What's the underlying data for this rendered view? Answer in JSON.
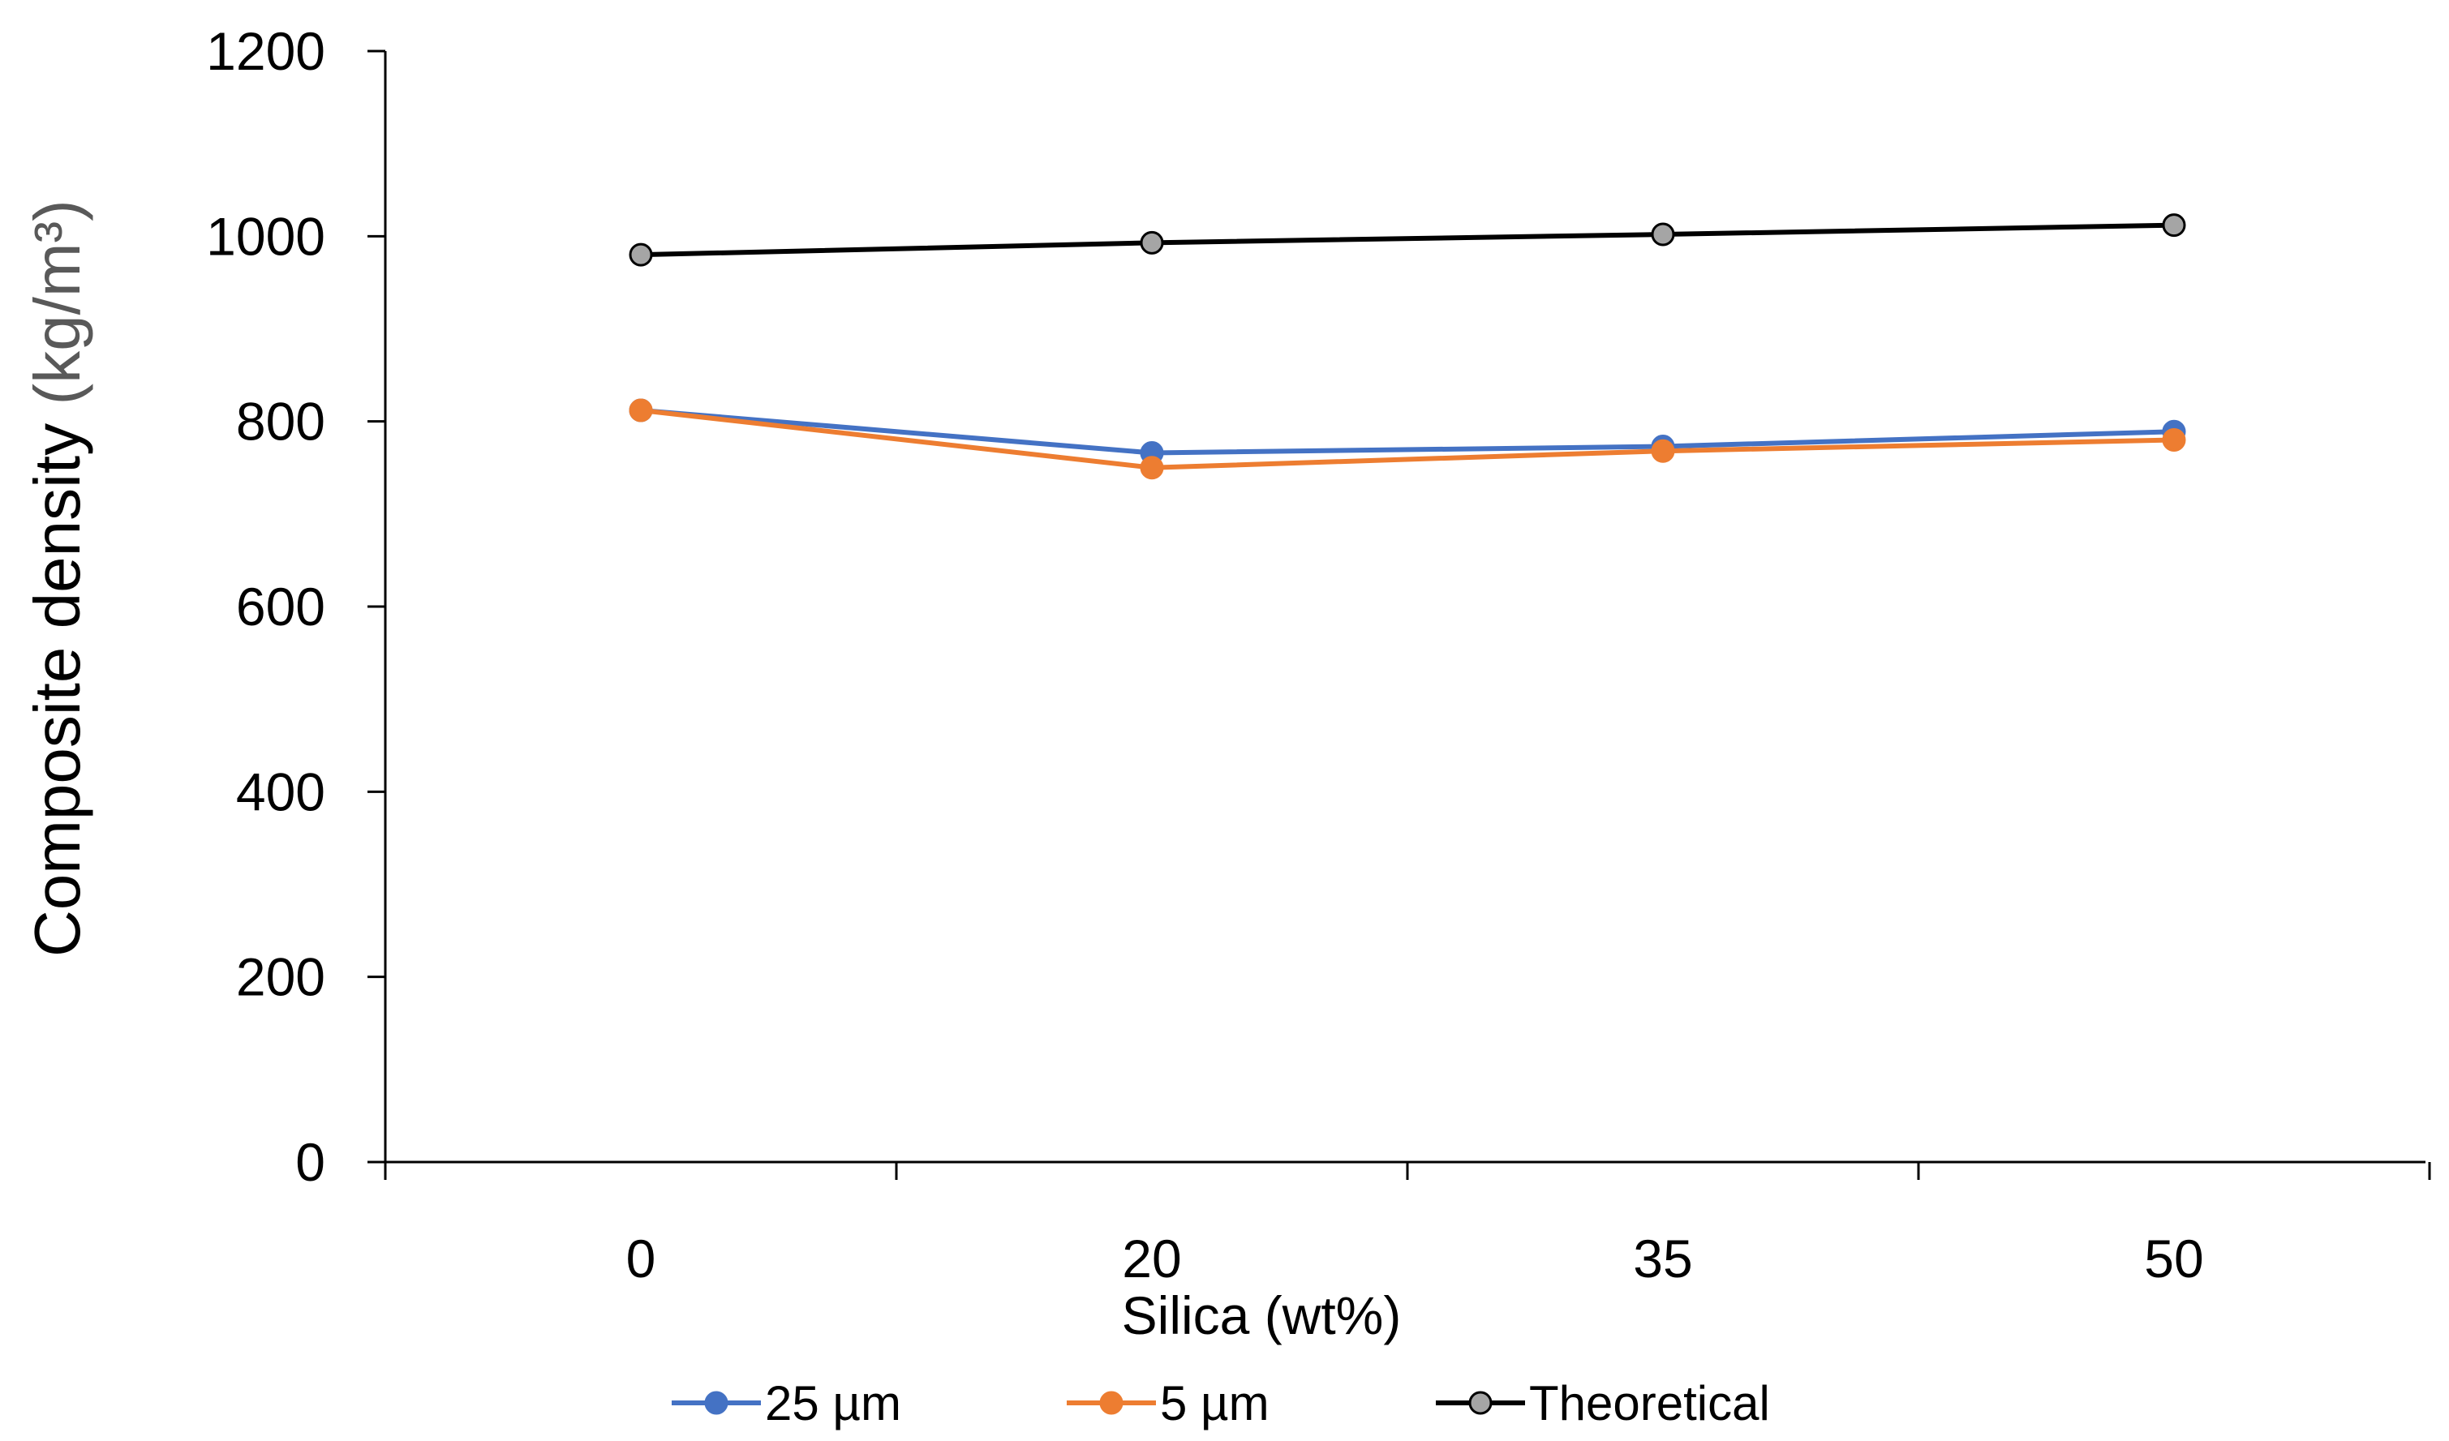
{
  "chart_data": {
    "type": "line",
    "title": "",
    "xlabel": "Silica (wt%)",
    "ylabel": "Composite  density",
    "ylabel_unit": "(kg/m³)",
    "categories": [
      "0",
      "20",
      "35",
      "50"
    ],
    "ylim": [
      0,
      1200
    ],
    "yticks": [
      0,
      200,
      400,
      600,
      800,
      1000,
      1200
    ],
    "grid": false,
    "legend_position": "bottom",
    "series": [
      {
        "name": "25 µm",
        "color": "#4472C4",
        "marker": "circle",
        "values": [
          812,
          766,
          773,
          789
        ]
      },
      {
        "name": "5 µm",
        "color": "#ED7D31",
        "marker": "circle",
        "values": [
          812,
          750,
          768,
          780
        ]
      },
      {
        "name": "Theoretical",
        "color": "#000000",
        "marker_fill": "#A5A5A5",
        "marker": "circle",
        "values": [
          980,
          993,
          1002,
          1012
        ]
      }
    ]
  }
}
